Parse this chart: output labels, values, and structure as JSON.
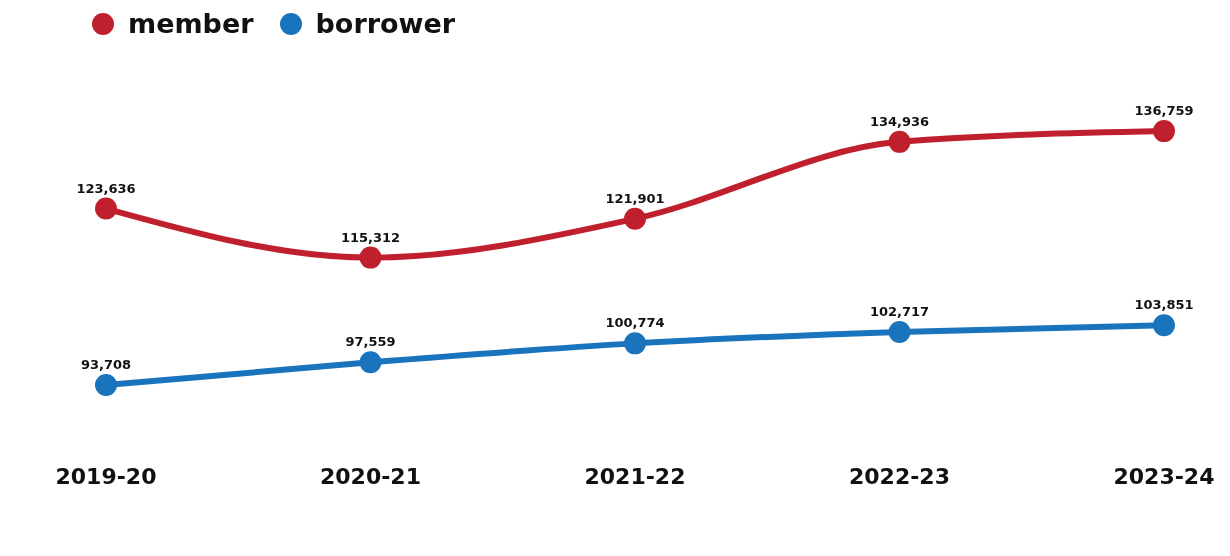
{
  "chart_data": {
    "type": "line",
    "categories": [
      "2019-20",
      "2020-21",
      "2021-22",
      "2022-23",
      "2023-24"
    ],
    "series": [
      {
        "name": "member",
        "color": "#c0202e",
        "values": [
          123636,
          115312,
          121901,
          134936,
          136759
        ],
        "value_labels": [
          "123,636",
          "115,312",
          "121,901",
          "134,936",
          "136,759"
        ]
      },
      {
        "name": "borrower",
        "color": "#1a74bd",
        "values": [
          93708,
          97559,
          100774,
          102717,
          103851
        ],
        "value_labels": [
          "93,708",
          "97,559",
          "100,774",
          "102,717",
          "103,851"
        ]
      }
    ],
    "legend": "top left",
    "marker": "circle",
    "line_style": "solid"
  }
}
